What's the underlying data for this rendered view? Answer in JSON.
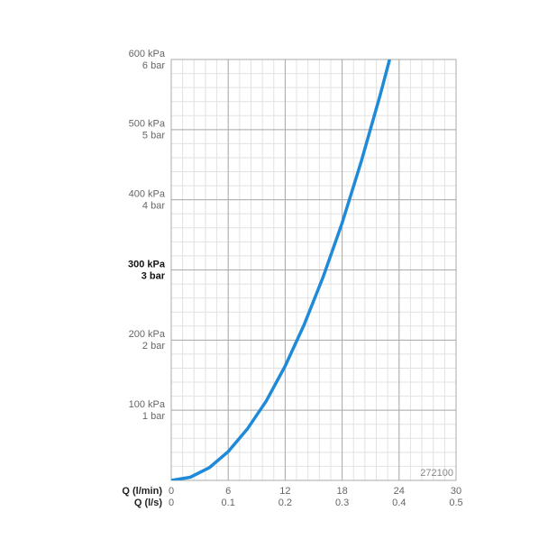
{
  "chart_data": {
    "type": "line",
    "x": [
      0,
      2,
      4,
      6,
      8,
      10,
      12,
      14,
      16,
      18,
      20,
      22,
      23
    ],
    "series": [
      {
        "color": "#1f8ad8",
        "values": [
          0,
          4.5,
          18,
          41,
          73,
          113,
          163,
          222,
          290,
          367,
          454,
          549,
          600
        ]
      }
    ],
    "xlim": [
      0,
      30
    ],
    "xticks": [
      0,
      6,
      12,
      18,
      24,
      30
    ],
    "xlabel": "Q (l/min)",
    "x2lim": [
      0,
      0.5
    ],
    "x2ticks": [
      0,
      0.1,
      0.2,
      0.3,
      0.4,
      0.5
    ],
    "x2label": "Q (l/s)",
    "ylim": [
      0,
      600
    ],
    "yticks": [
      {
        "value": 100,
        "label": "100 kPa"
      },
      {
        "value": 200,
        "label": "200 kPa"
      },
      {
        "value": 300,
        "label": "300 kPa"
      },
      {
        "value": 400,
        "label": "400 kPa"
      },
      {
        "value": 500,
        "label": "500 kPa"
      },
      {
        "value": 600,
        "label": "600 kPa"
      }
    ],
    "y2lim": [
      0,
      6
    ],
    "y2ticks": [
      {
        "value": 1,
        "label": "1 bar"
      },
      {
        "value": 2,
        "label": "2 bar"
      },
      {
        "value": 3,
        "label": "3 bar"
      },
      {
        "value": 4,
        "label": "4 bar"
      },
      {
        "value": 5,
        "label": "5 bar"
      },
      {
        "value": 6,
        "label": "6 bar"
      }
    ],
    "bold_ytick": 300,
    "annotation": "272100",
    "grid": true
  }
}
